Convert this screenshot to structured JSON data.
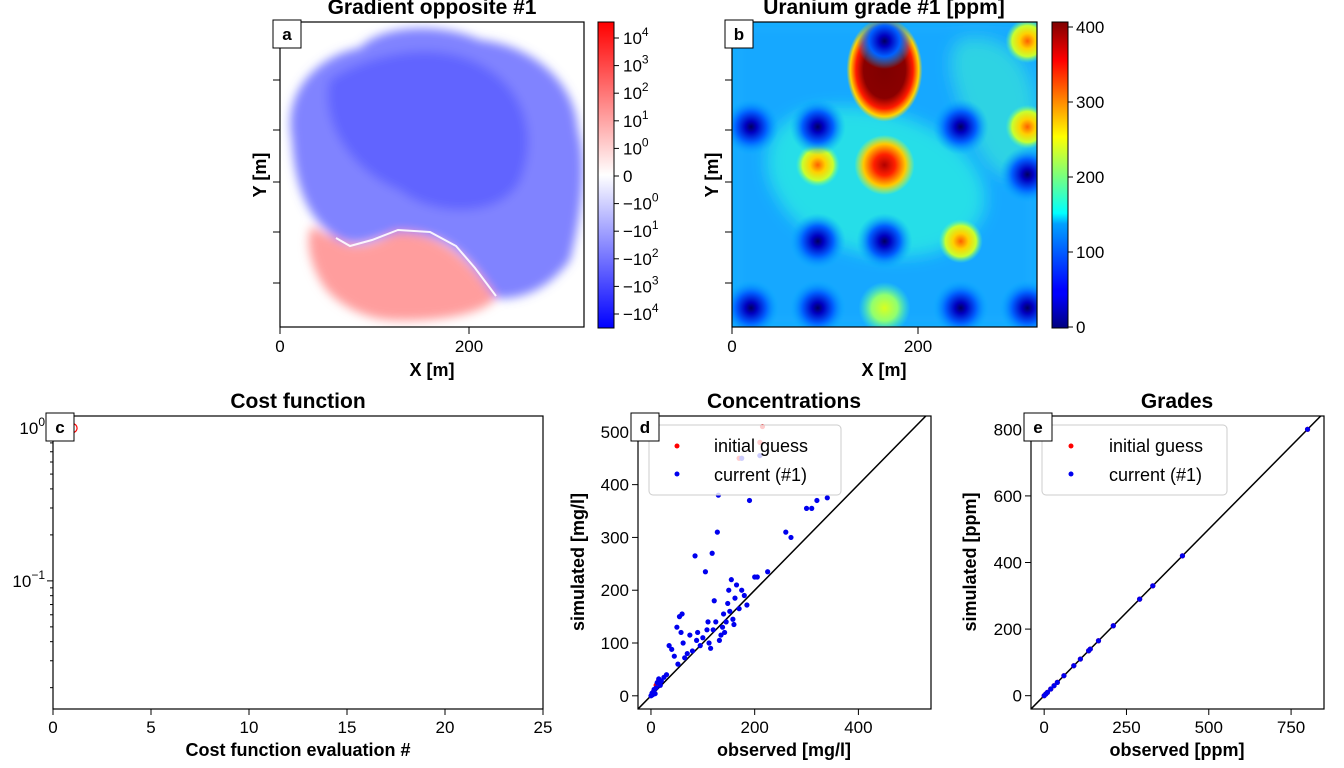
{
  "chart_data": [
    {
      "id": "a",
      "type": "heatmap",
      "panel_letter": "a",
      "title": "Gradient opposite #1",
      "xlabel": "X [m]",
      "ylabel": "Y [m]",
      "xticks": [
        "0",
        "200"
      ],
      "xlim": [
        0,
        320
      ],
      "colormap": "bwr (symmetric log)",
      "colorbar_ticks": [
        {
          "base": "10",
          "exp": "4",
          "sign": ""
        },
        {
          "base": "10",
          "exp": "3",
          "sign": ""
        },
        {
          "base": "10",
          "exp": "2",
          "sign": ""
        },
        {
          "base": "10",
          "exp": "1",
          "sign": ""
        },
        {
          "base": "10",
          "exp": "0",
          "sign": ""
        },
        {
          "base": "0",
          "exp": "",
          "sign": ""
        },
        {
          "base": "10",
          "exp": "0",
          "sign": "−"
        },
        {
          "base": "10",
          "exp": "1",
          "sign": "−"
        },
        {
          "base": "10",
          "exp": "2",
          "sign": "−"
        },
        {
          "base": "10",
          "exp": "3",
          "sign": "−"
        },
        {
          "base": "10",
          "exp": "4",
          "sign": "−"
        }
      ]
    },
    {
      "id": "b",
      "type": "heatmap",
      "panel_letter": "b",
      "title": "Uranium grade #1 [ppm]",
      "xlabel": "X [m]",
      "ylabel": "Y [m]",
      "xticks": [
        "0",
        "200"
      ],
      "xlim": [
        0,
        320
      ],
      "colormap": "jet",
      "colorbar_range": [
        0,
        400
      ],
      "colorbar_ticks": [
        "400",
        "300",
        "200",
        "100",
        "0"
      ],
      "hotspots": [
        {
          "x": 160,
          "y": 270,
          "grade": 480
        },
        {
          "x": 160,
          "y": 170,
          "grade": 370
        },
        {
          "x": 90,
          "y": 170,
          "grade": 260
        },
        {
          "x": 310,
          "y": 210,
          "grade": 270
        },
        {
          "x": 310,
          "y": 300,
          "grade": 240
        },
        {
          "x": 240,
          "y": 90,
          "grade": 250
        },
        {
          "x": 160,
          "y": 20,
          "grade": 170
        },
        {
          "x": 90,
          "y": 90,
          "grade": 20
        },
        {
          "x": 160,
          "y": 90,
          "grade": 20
        },
        {
          "x": 20,
          "y": 210,
          "grade": 20
        },
        {
          "x": 90,
          "y": 210,
          "grade": 20
        },
        {
          "x": 240,
          "y": 210,
          "grade": 20
        },
        {
          "x": 20,
          "y": 20,
          "grade": 20
        },
        {
          "x": 90,
          "y": 20,
          "grade": 20
        },
        {
          "x": 240,
          "y": 20,
          "grade": 20
        },
        {
          "x": 310,
          "y": 20,
          "grade": 20
        },
        {
          "x": 160,
          "y": 300,
          "grade": 20
        },
        {
          "x": 310,
          "y": 160,
          "grade": 20
        }
      ]
    },
    {
      "id": "c",
      "type": "scatter",
      "panel_letter": "c",
      "title": "Cost function",
      "xlabel": "Cost function evaluation #",
      "ylabel": "",
      "xlim": [
        0,
        25
      ],
      "xticks": [
        "0",
        "5",
        "10",
        "15",
        "20",
        "25"
      ],
      "yscale": "log",
      "ylim": [
        0.0145,
        1.2
      ],
      "yticks": [
        {
          "base": "10",
          "exp": "0",
          "value": 1
        },
        {
          "base": "10",
          "exp": "−1",
          "value": 0.1
        }
      ],
      "points": [
        {
          "x": 1,
          "y": 1
        }
      ]
    },
    {
      "id": "d",
      "type": "scatter",
      "panel_letter": "d",
      "title": "Concentrations",
      "xlabel": "observed [mg/l]",
      "ylabel": "simulated [mg/l]",
      "xlim": [
        -25,
        540
      ],
      "ylim": [
        -25,
        530
      ],
      "xticks": [
        "0",
        "200",
        "400"
      ],
      "yticks": [
        "0",
        "100",
        "200",
        "300",
        "400",
        "500"
      ],
      "legend": [
        "initial guess",
        "current (#1)"
      ],
      "series": [
        {
          "name": "initial guess",
          "color": "#ff0000",
          "points": [
            [
              5,
              8
            ],
            [
              10,
              20
            ],
            [
              15,
              30
            ],
            [
              170,
              450
            ],
            [
              210,
              480
            ],
            [
              215,
              510
            ]
          ]
        },
        {
          "name": "current (#1)",
          "color": "#0000ee",
          "points": [
            [
              0,
              0
            ],
            [
              2,
              5
            ],
            [
              3,
              2
            ],
            [
              5,
              8
            ],
            [
              6,
              12
            ],
            [
              8,
              4
            ],
            [
              10,
              15
            ],
            [
              12,
              25
            ],
            [
              15,
              32
            ],
            [
              18,
              20
            ],
            [
              20,
              28
            ],
            [
              25,
              35
            ],
            [
              30,
              40
            ],
            [
              35,
              95
            ],
            [
              40,
              88
            ],
            [
              45,
              75
            ],
            [
              50,
              130
            ],
            [
              52,
              60
            ],
            [
              55,
              150
            ],
            [
              58,
              120
            ],
            [
              60,
              155
            ],
            [
              62,
              100
            ],
            [
              65,
              72
            ],
            [
              70,
              80
            ],
            [
              75,
              115
            ],
            [
              80,
              85
            ],
            [
              85,
              265
            ],
            [
              88,
              105
            ],
            [
              90,
              120
            ],
            [
              95,
              95
            ],
            [
              100,
              110
            ],
            [
              105,
              235
            ],
            [
              108,
              125
            ],
            [
              110,
              140
            ],
            [
              112,
              100
            ],
            [
              115,
              90
            ],
            [
              118,
              270
            ],
            [
              120,
              125
            ],
            [
              122,
              180
            ],
            [
              125,
              140
            ],
            [
              128,
              310
            ],
            [
              130,
              380
            ],
            [
              132,
              105
            ],
            [
              135,
              115
            ],
            [
              138,
              130
            ],
            [
              140,
              155
            ],
            [
              142,
              120
            ],
            [
              145,
              140
            ],
            [
              148,
              175
            ],
            [
              150,
              200
            ],
            [
              152,
              160
            ],
            [
              155,
              220
            ],
            [
              158,
              145
            ],
            [
              160,
              135
            ],
            [
              162,
              185
            ],
            [
              165,
              210
            ],
            [
              170,
              165
            ],
            [
              175,
              200
            ],
            [
              180,
              190
            ],
            [
              185,
              172
            ],
            [
              190,
              370
            ],
            [
              200,
              225
            ],
            [
              205,
              225
            ],
            [
              225,
              235
            ],
            [
              260,
              310
            ],
            [
              270,
              300
            ],
            [
              300,
              355
            ],
            [
              310,
              355
            ],
            [
              320,
              370
            ],
            [
              340,
              375
            ],
            [
              210,
              455
            ],
            [
              175,
              450
            ]
          ]
        }
      ],
      "reference_line": "1:1"
    },
    {
      "id": "e",
      "type": "scatter",
      "panel_letter": "e",
      "title": "Grades",
      "xlabel": "observed [ppm]",
      "ylabel": "simulated [ppm]",
      "xlim": [
        -40,
        850
      ],
      "ylim": [
        -40,
        840
      ],
      "xticks": [
        "0",
        "250",
        "500",
        "750"
      ],
      "yticks": [
        "0",
        "200",
        "400",
        "600",
        "800"
      ],
      "legend": [
        "initial guess",
        "current (#1)"
      ],
      "series": [
        {
          "name": "initial guess",
          "color": "#ff0000",
          "points": [
            [
              0,
              0
            ],
            [
              5,
              5
            ],
            [
              10,
              10
            ],
            [
              20,
              20
            ],
            [
              30,
              30
            ],
            [
              40,
              40
            ],
            [
              60,
              60
            ],
            [
              90,
              90
            ],
            [
              110,
              110
            ],
            [
              135,
              135
            ],
            [
              140,
              140
            ],
            [
              165,
              165
            ],
            [
              210,
              210
            ],
            [
              290,
              290
            ],
            [
              330,
              330
            ],
            [
              420,
              420
            ],
            [
              800,
              800
            ]
          ]
        },
        {
          "name": "current (#1)",
          "color": "#0000ee",
          "points": [
            [
              0,
              0
            ],
            [
              5,
              5
            ],
            [
              10,
              10
            ],
            [
              20,
              20
            ],
            [
              30,
              30
            ],
            [
              40,
              40
            ],
            [
              60,
              60
            ],
            [
              90,
              90
            ],
            [
              110,
              110
            ],
            [
              135,
              135
            ],
            [
              140,
              140
            ],
            [
              165,
              165
            ],
            [
              210,
              210
            ],
            [
              290,
              290
            ],
            [
              330,
              330
            ],
            [
              420,
              420
            ],
            [
              800,
              800
            ]
          ]
        }
      ],
      "reference_line": "1:1"
    }
  ]
}
